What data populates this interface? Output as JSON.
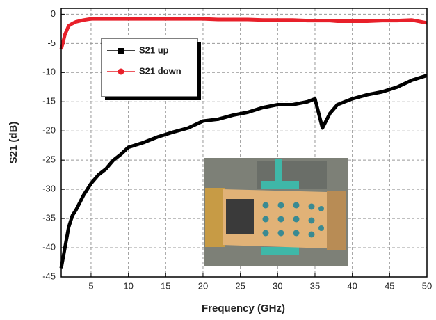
{
  "chart_data": {
    "type": "line",
    "x_label": "Frequency (GHz)",
    "y_label": "S21 (dB)",
    "x": [
      1,
      1.5,
      2,
      2.5,
      3,
      4,
      5,
      6,
      7,
      8,
      9,
      10,
      12,
      14,
      16,
      18,
      20,
      22,
      24,
      26,
      28,
      30,
      32,
      34,
      35,
      36,
      37,
      38,
      40,
      42,
      44,
      46,
      48,
      50
    ],
    "series": [
      {
        "name": "S21 up",
        "color": "#000000",
        "marker": "square",
        "values": [
          -43.5,
          -40,
          -36.5,
          -34.5,
          -33.5,
          -31,
          -29,
          -27.5,
          -26.5,
          -25,
          -24,
          -22.8,
          -22,
          -21,
          -20.2,
          -19.5,
          -18.3,
          -18,
          -17.3,
          -16.8,
          -16,
          -15.5,
          -15.5,
          -15,
          -14.5,
          -19.5,
          -17,
          -15.5,
          -14.5,
          -13.8,
          -13.3,
          -12.5,
          -11.3,
          -10.5
        ]
      },
      {
        "name": "S21 down",
        "color": "#e8202a",
        "marker": "circle",
        "values": [
          -6,
          -3.5,
          -2,
          -1.6,
          -1.3,
          -1,
          -0.8,
          -0.8,
          -0.8,
          -0.8,
          -0.8,
          -0.8,
          -0.8,
          -0.8,
          -0.8,
          -0.8,
          -0.8,
          -0.9,
          -0.9,
          -0.9,
          -1,
          -1,
          -1,
          -1.1,
          -1.1,
          -1.1,
          -1.1,
          -1.2,
          -1.2,
          -1.2,
          -1.1,
          -1.1,
          -1,
          -1.5
        ]
      }
    ],
    "xlim": [
      1,
      50
    ],
    "ylim": [
      -45,
      1
    ],
    "xticks": [
      5,
      10,
      15,
      20,
      25,
      30,
      35,
      40,
      45,
      50
    ],
    "yticks": [
      0,
      -5,
      -10,
      -15,
      -20,
      -25,
      -30,
      -35,
      -40,
      -45
    ],
    "grid": true,
    "legend": "upper-left"
  }
}
